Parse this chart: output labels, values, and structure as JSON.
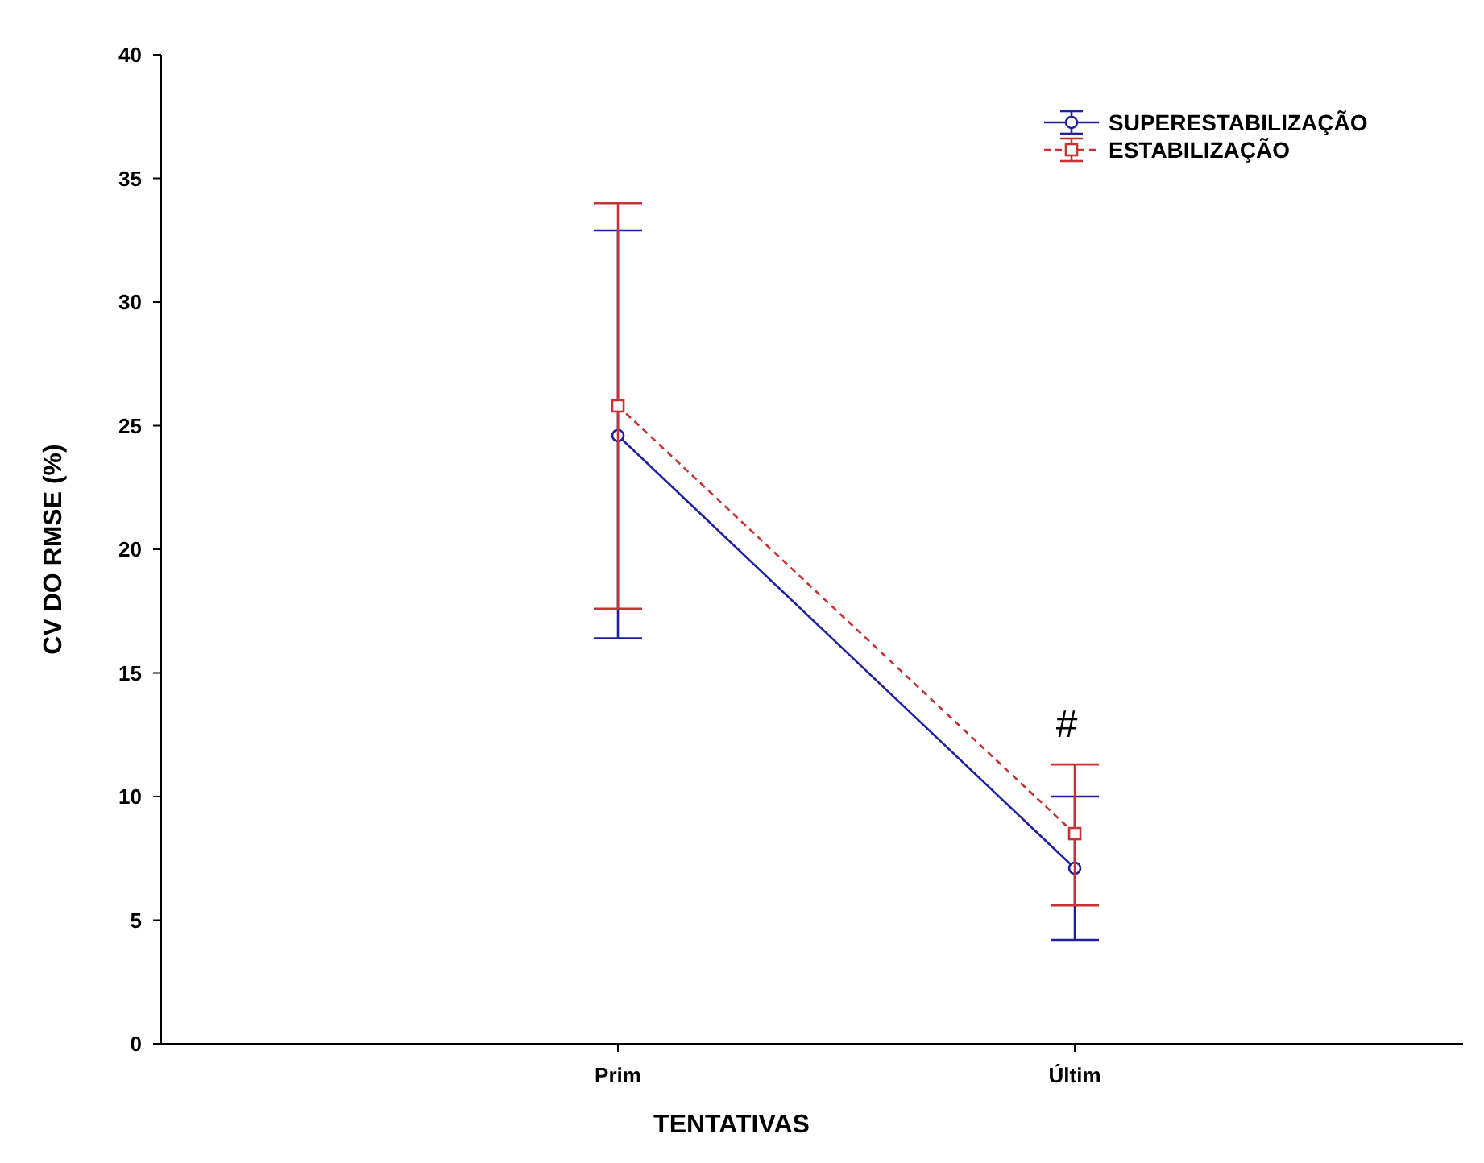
{
  "chart_data": {
    "type": "line",
    "xlabel": "TENTATIVAS",
    "ylabel": "CV DO RMSE (%)",
    "categories": [
      "Prim",
      "Últim"
    ],
    "series": [
      {
        "name": "SUPERESTABILIZAÇÃO",
        "color": "#1f1fa0",
        "values": [
          24.6,
          7.1
        ],
        "errors": [
          [
            16.4,
            32.9
          ],
          [
            4.2,
            10.0
          ]
        ],
        "marker": "circle",
        "line_style": "solid"
      },
      {
        "name": "ESTABILIZAÇÃO",
        "color": "#c83232",
        "values": [
          25.8,
          8.5
        ],
        "errors": [
          [
            17.6,
            34.0
          ],
          [
            5.6,
            11.3
          ]
        ],
        "marker": "square",
        "line_style": "dashed"
      }
    ],
    "ylim": [
      0,
      40
    ],
    "yticks": [
      0,
      5,
      10,
      15,
      20,
      25,
      30,
      35,
      40
    ],
    "grid": false,
    "legend": "top right",
    "annotations": [
      "#"
    ]
  }
}
